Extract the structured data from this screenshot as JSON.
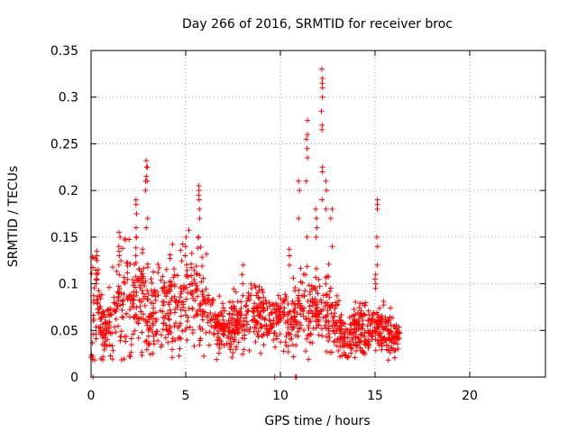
{
  "chart_data": {
    "type": "scatter",
    "title": "Day 266 of 2016, SRMTID for receiver broc",
    "xlabel": "GPS time / hours",
    "ylabel": "SRMTID / TECUs",
    "xlim": [
      0,
      24
    ],
    "ylim": [
      0,
      0.35
    ],
    "x_ticks": [
      0,
      5,
      10,
      15,
      20
    ],
    "x_tick_labels": [
      "0",
      "5",
      "10",
      "15",
      "20"
    ],
    "y_ticks": [
      0,
      0.05,
      0.1,
      0.15,
      0.2,
      0.25,
      0.3,
      0.35
    ],
    "y_tick_labels": [
      "0",
      "0.05",
      "0.1",
      "0.15",
      "0.2",
      "0.25",
      "0.3",
      "0.35"
    ],
    "grid": true,
    "marker": "plus",
    "series_color": "#ff0000",
    "profile": [
      [
        0.0,
        0.075,
        0.03
      ],
      [
        0.3,
        0.085,
        0.025
      ],
      [
        0.7,
        0.045,
        0.015
      ],
      [
        1.0,
        0.06,
        0.02
      ],
      [
        1.5,
        0.08,
        0.03
      ],
      [
        2.0,
        0.09,
        0.035
      ],
      [
        2.5,
        0.085,
        0.03
      ],
      [
        3.0,
        0.07,
        0.025
      ],
      [
        3.5,
        0.075,
        0.025
      ],
      [
        4.0,
        0.075,
        0.025
      ],
      [
        4.5,
        0.085,
        0.03
      ],
      [
        5.0,
        0.09,
        0.03
      ],
      [
        5.5,
        0.085,
        0.03
      ],
      [
        6.0,
        0.075,
        0.025
      ],
      [
        6.5,
        0.055,
        0.015
      ],
      [
        7.0,
        0.05,
        0.012
      ],
      [
        7.5,
        0.055,
        0.015
      ],
      [
        8.0,
        0.06,
        0.015
      ],
      [
        8.5,
        0.065,
        0.015
      ],
      [
        9.0,
        0.065,
        0.015
      ],
      [
        9.5,
        0.06,
        0.015
      ],
      [
        10.0,
        0.06,
        0.015
      ],
      [
        10.5,
        0.065,
        0.02
      ],
      [
        11.0,
        0.075,
        0.02
      ],
      [
        11.5,
        0.07,
        0.02
      ],
      [
        12.0,
        0.07,
        0.02
      ],
      [
        12.5,
        0.075,
        0.025
      ],
      [
        13.0,
        0.055,
        0.015
      ],
      [
        13.5,
        0.035,
        0.01
      ],
      [
        14.0,
        0.05,
        0.015
      ],
      [
        14.5,
        0.05,
        0.015
      ],
      [
        15.0,
        0.055,
        0.015
      ],
      [
        15.5,
        0.05,
        0.015
      ],
      [
        16.0,
        0.045,
        0.01
      ],
      [
        16.3,
        0.045,
        0.008
      ]
    ],
    "peaks": [
      {
        "x": 0.3,
        "y": [
          0.1,
          0.105,
          0.11,
          0.125,
          0.13,
          0.135
        ]
      },
      {
        "x": 1.5,
        "y": [
          0.12,
          0.13,
          0.135,
          0.14,
          0.15,
          0.155
        ]
      },
      {
        "x": 2.4,
        "y": [
          0.13,
          0.15,
          0.16,
          0.175,
          0.185,
          0.19
        ]
      },
      {
        "x": 2.9,
        "y": [
          0.16,
          0.2,
          0.21,
          0.215,
          0.225,
          0.232
        ]
      },
      {
        "x": 3.0,
        "y": [
          0.17,
          0.21,
          0.225
        ]
      },
      {
        "x": 5.0,
        "y": [
          0.13,
          0.14,
          0.15
        ]
      },
      {
        "x": 5.7,
        "y": [
          0.15,
          0.17,
          0.18,
          0.19,
          0.195,
          0.2,
          0.205
        ]
      },
      {
        "x": 8.0,
        "y": [
          0.1,
          0.11,
          0.12
        ]
      },
      {
        "x": 10.5,
        "y": [
          0.12,
          0.13,
          0.137
        ]
      },
      {
        "x": 11.0,
        "y": [
          0.17,
          0.2,
          0.21
        ]
      },
      {
        "x": 11.4,
        "y": [
          0.15,
          0.21,
          0.235,
          0.245,
          0.255,
          0.26,
          0.275
        ]
      },
      {
        "x": 11.9,
        "y": [
          0.15,
          0.16,
          0.17,
          0.18
        ]
      },
      {
        "x": 12.2,
        "y": [
          0.19,
          0.22,
          0.225,
          0.265,
          0.27,
          0.285,
          0.3,
          0.31,
          0.315,
          0.32,
          0.33
        ]
      },
      {
        "x": 12.4,
        "y": [
          0.18,
          0.2,
          0.21
        ]
      },
      {
        "x": 12.7,
        "y": [
          0.14,
          0.17,
          0.18
        ]
      },
      {
        "x": 15.1,
        "y": [
          0.12,
          0.14,
          0.15,
          0.18,
          0.185,
          0.19
        ]
      },
      {
        "x": 15.0,
        "y": [
          0.095,
          0.1,
          0.105,
          0.11
        ]
      }
    ],
    "zero_points": [
      [
        0.1,
        0.0
      ],
      [
        9.7,
        0.0
      ],
      [
        10.8,
        0.0
      ],
      [
        10.85,
        0.0
      ]
    ],
    "num_random_points": 1400
  }
}
